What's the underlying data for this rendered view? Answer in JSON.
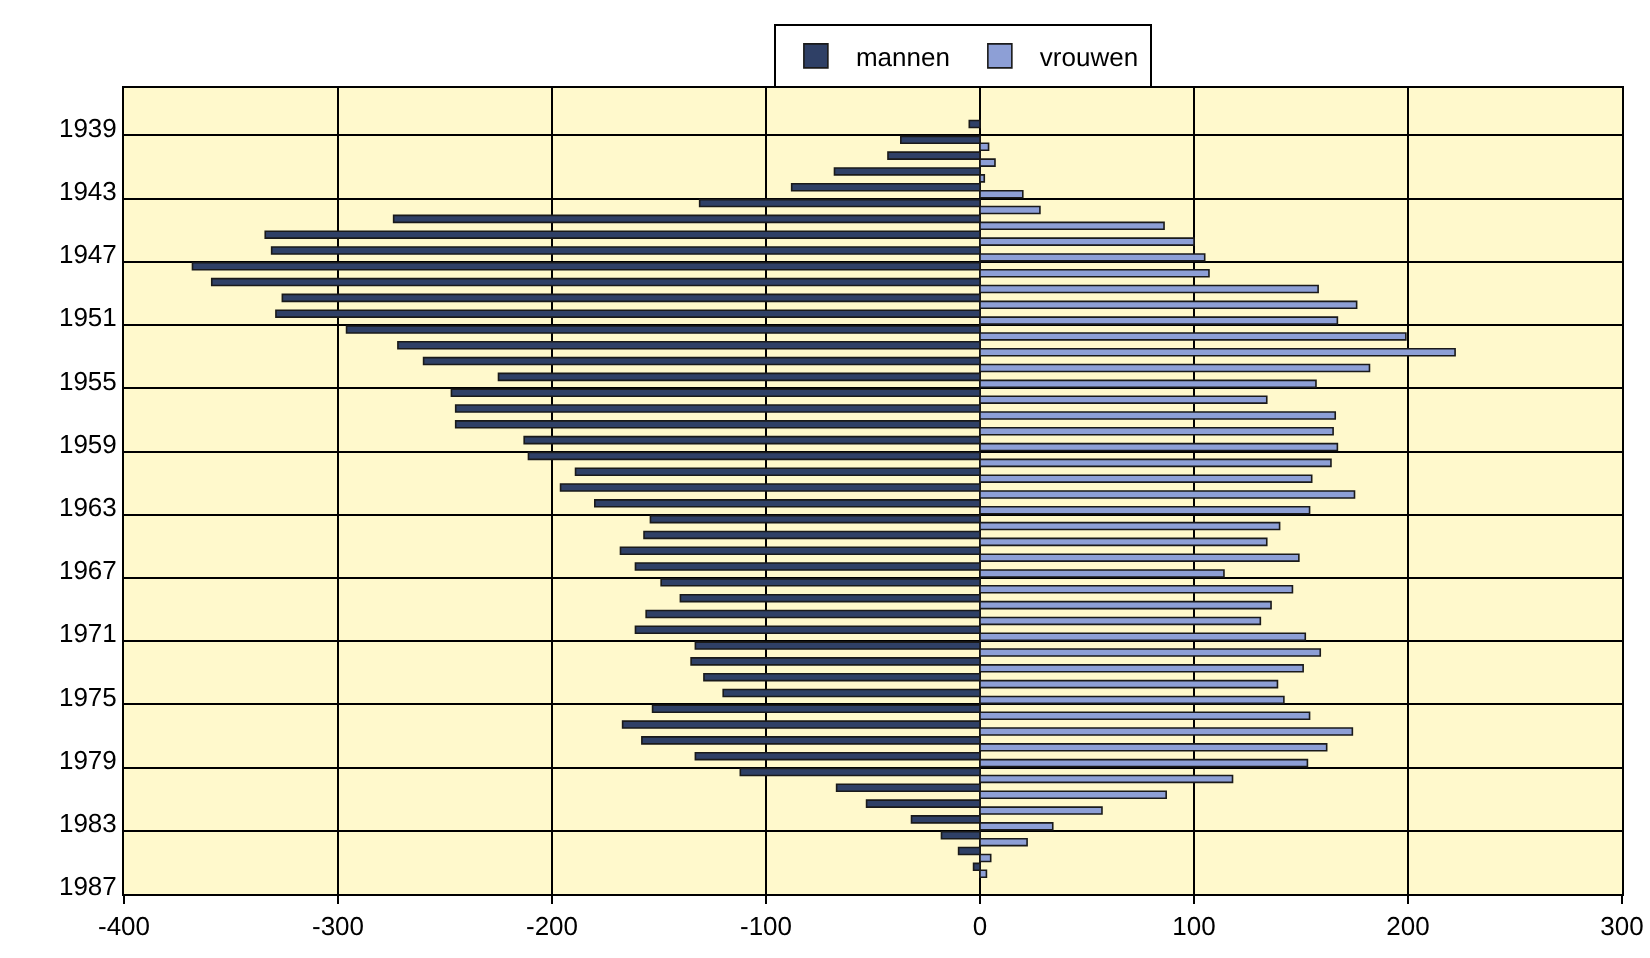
{
  "chart_data": {
    "type": "bar",
    "orientation": "horizontal",
    "categories": [
      null,
      null,
      "1939",
      null,
      null,
      null,
      "1943",
      null,
      null,
      null,
      "1947",
      null,
      null,
      null,
      "1951",
      null,
      null,
      null,
      "1955",
      null,
      null,
      null,
      "1959",
      null,
      null,
      null,
      "1963",
      null,
      null,
      null,
      "1967",
      null,
      null,
      null,
      "1971",
      null,
      null,
      null,
      "1975",
      null,
      null,
      null,
      "1979",
      null,
      null,
      null,
      "1983",
      null,
      null,
      null,
      "1987"
    ],
    "series": [
      {
        "name": "mannen",
        "color": "#2f4066",
        "values": [
          null,
          null,
          -5,
          -37,
          -43,
          -68,
          -88,
          -131,
          -274,
          -334,
          -331,
          -368,
          -359,
          -326,
          -329,
          -296,
          -272,
          -260,
          -225,
          -247,
          -245,
          -245,
          -213,
          -211,
          -189,
          -196,
          -180,
          -154,
          -157,
          -168,
          -161,
          -149,
          -140,
          -156,
          -161,
          -133,
          -135,
          -129,
          -120,
          -153,
          -167,
          -158,
          -133,
          -112,
          -67,
          -53,
          -32,
          -18,
          -10,
          -3,
          null
        ]
      },
      {
        "name": "vrouwen",
        "color": "#8d9fd6",
        "values": [
          null,
          null,
          null,
          4,
          7,
          2,
          20,
          28,
          86,
          100,
          105,
          107,
          158,
          176,
          167,
          199,
          222,
          182,
          157,
          134,
          166,
          165,
          167,
          164,
          155,
          175,
          154,
          140,
          134,
          149,
          114,
          146,
          136,
          131,
          152,
          159,
          151,
          139,
          142,
          154,
          174,
          162,
          153,
          118,
          87,
          57,
          34,
          22,
          5,
          3,
          null
        ]
      }
    ],
    "xlim": [
      -400,
      300
    ],
    "xticks": [
      -400,
      -300,
      -200,
      -100,
      0,
      100,
      200,
      300
    ],
    "grid": true,
    "legend": "top"
  }
}
